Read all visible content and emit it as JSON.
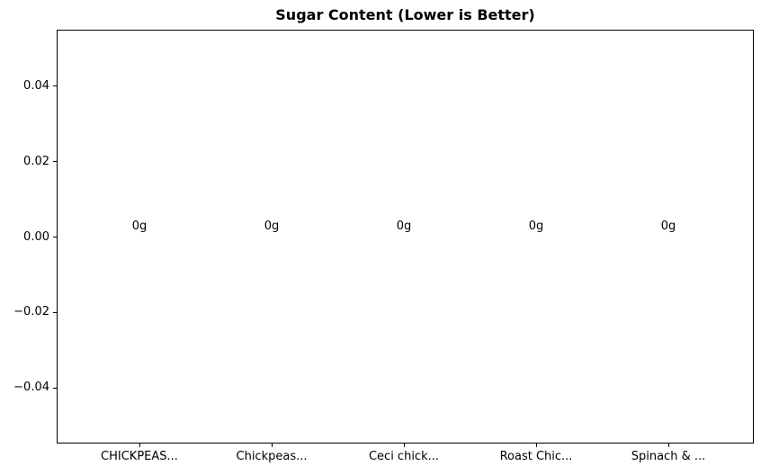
{
  "window": {
    "background": "#ffffff"
  },
  "chart_data": {
    "type": "bar",
    "title": "Sugar Content (Lower is Better)",
    "categories": [
      "CHICKPEAS...",
      "Chickpeas...",
      "Ceci chick...",
      "Roast Chic...",
      "Spinach & ..."
    ],
    "values": [
      0,
      0,
      0,
      0,
      0
    ],
    "bar_labels": [
      "0g",
      "0g",
      "0g",
      "0g",
      "0g"
    ],
    "xlabel": "",
    "ylabel": "",
    "y_ticks": [
      0.04,
      0.02,
      0.0,
      -0.02,
      -0.04
    ],
    "y_tick_labels": [
      "0.04",
      "0.02",
      "0.00",
      "−0.02",
      "−0.04"
    ],
    "ylim": [
      -0.0549,
      0.0549
    ],
    "grid": false,
    "legend": null,
    "colors": {
      "text": "#000000",
      "spine": "#000000",
      "background": "#ffffff"
    }
  }
}
